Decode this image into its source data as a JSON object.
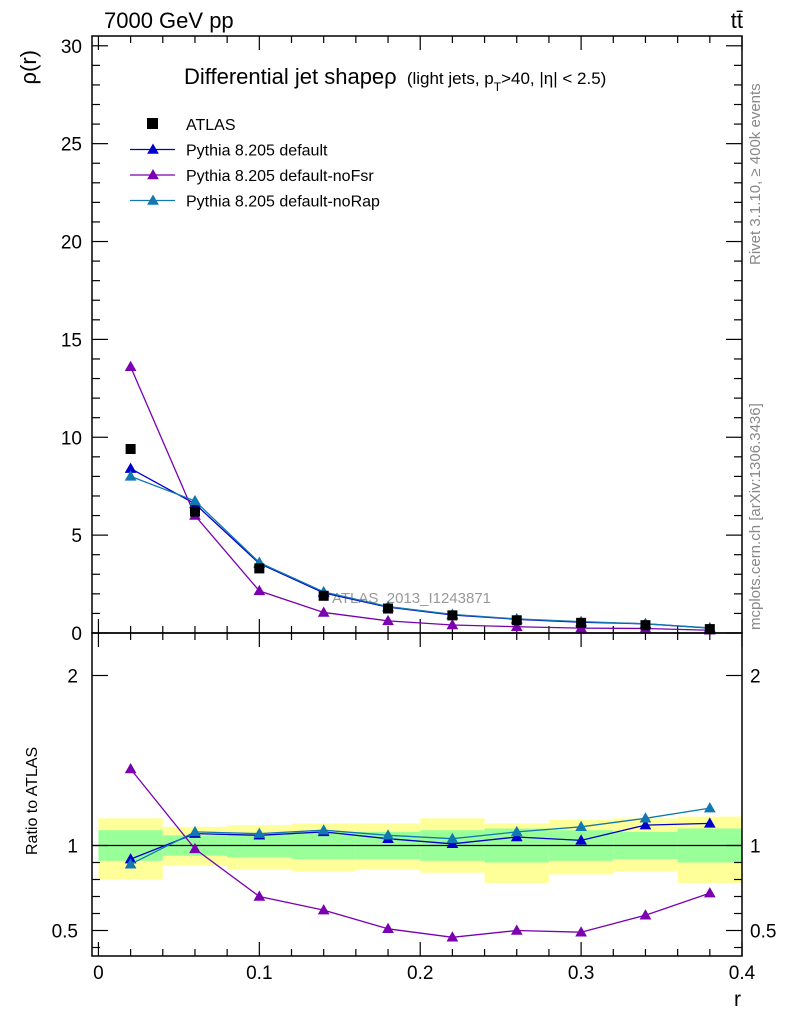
{
  "header": {
    "energy": "7000 GeV pp",
    "process": "tt̄"
  },
  "side_labels": {
    "rivet": "Rivet 3.1.10, ≥ 400k events",
    "mcplots": "mcplots.cern.ch [arXiv:1306.3436]"
  },
  "chart_data": [
    {
      "type": "line",
      "title": "Differential jet shapeρ (light jets, p_T>40, |η| < 2.5)",
      "title_main": "Differential jet shapeρ",
      "title_sub": "(light jets, p",
      "title_sub_T": "T",
      "title_sub_rest": ">40, |η| < 2.5)",
      "ylabel": "ρ(r)",
      "xlabel": "r",
      "xlim": [
        -0.004,
        0.4
      ],
      "ylim": [
        0,
        30.5
      ],
      "yticks": [
        0,
        5,
        10,
        15,
        20,
        25,
        30
      ],
      "ytick_labels": [
        "0",
        "5",
        "10",
        "15",
        "20",
        "25",
        "30"
      ],
      "watermark": "ATLAS_2013_I1243871",
      "legend_position": "top-left",
      "x": [
        0.02,
        0.06,
        0.1,
        0.14,
        0.18,
        0.22,
        0.26,
        0.3,
        0.34,
        0.38
      ],
      "data_series": {
        "name": "ATLAS",
        "values": [
          9.4,
          6.2,
          3.3,
          1.9,
          1.25,
          0.9,
          0.65,
          0.52,
          0.4,
          0.2
        ]
      },
      "series": [
        {
          "name": "Pythia 8.205 default",
          "color": "#0000cc",
          "values": [
            8.4,
            6.6,
            3.55,
            2.05,
            1.32,
            0.92,
            0.7,
            0.55,
            0.47,
            0.25
          ]
        },
        {
          "name": "Pythia 8.205 default-noFsr",
          "color": "#7a00b0",
          "values": [
            13.6,
            6.0,
            2.15,
            1.05,
            0.62,
            0.41,
            0.32,
            0.25,
            0.23,
            0.14
          ]
        },
        {
          "name": "Pythia 8.205 default-noRap",
          "color": "#1178b0",
          "values": [
            8.0,
            6.75,
            3.6,
            2.1,
            1.35,
            0.95,
            0.72,
            0.58,
            0.47,
            0.26
          ]
        }
      ]
    },
    {
      "type": "line",
      "ylabel": "Ratio to ATLAS",
      "xlabel": "r",
      "xlim": [
        -0.004,
        0.4
      ],
      "ylim": [
        0.35,
        2.25
      ],
      "yticks": [
        0.5,
        1,
        2
      ],
      "ytick_labels": [
        "0.5",
        "1",
        "2"
      ],
      "xticks": [
        0,
        0.1,
        0.2,
        0.3,
        0.4
      ],
      "xtick_labels": [
        "0",
        "0.1",
        "0.2",
        "0.3",
        "0.4"
      ],
      "x": [
        0.02,
        0.06,
        0.1,
        0.14,
        0.18,
        0.22,
        0.26,
        0.3,
        0.34,
        0.38
      ],
      "bins": [
        [
          0.0,
          0.04
        ],
        [
          0.04,
          0.08
        ],
        [
          0.08,
          0.12
        ],
        [
          0.12,
          0.16
        ],
        [
          0.16,
          0.2
        ],
        [
          0.2,
          0.24
        ],
        [
          0.24,
          0.28
        ],
        [
          0.28,
          0.32
        ],
        [
          0.32,
          0.36
        ],
        [
          0.36,
          0.4
        ]
      ],
      "band_stat": [
        [
          0.91,
          1.09
        ],
        [
          0.94,
          1.06
        ],
        [
          0.93,
          1.07
        ],
        [
          0.92,
          1.08
        ],
        [
          0.92,
          1.08
        ],
        [
          0.91,
          1.09
        ],
        [
          0.9,
          1.1
        ],
        [
          0.91,
          1.09
        ],
        [
          0.92,
          1.08
        ],
        [
          0.9,
          1.1
        ]
      ],
      "band_total": [
        [
          0.8,
          1.16
        ],
        [
          0.88,
          1.11
        ],
        [
          0.86,
          1.12
        ],
        [
          0.85,
          1.13
        ],
        [
          0.86,
          1.13
        ],
        [
          0.84,
          1.16
        ],
        [
          0.78,
          1.13
        ],
        [
          0.83,
          1.15
        ],
        [
          0.85,
          1.16
        ],
        [
          0.78,
          1.17
        ]
      ],
      "series": [
        {
          "name": "Pythia 8.205 default",
          "color": "#0000cc",
          "values": [
            0.92,
            1.07,
            1.06,
            1.08,
            1.04,
            1.01,
            1.05,
            1.03,
            1.12,
            1.13
          ]
        },
        {
          "name": "Pythia 8.205 default-noFsr",
          "color": "#7a00b0",
          "values": [
            1.45,
            0.98,
            0.7,
            0.62,
            0.51,
            0.46,
            0.5,
            0.49,
            0.59,
            0.72
          ]
        },
        {
          "name": "Pythia 8.205 default-noRap",
          "color": "#1178b0",
          "values": [
            0.89,
            1.08,
            1.07,
            1.09,
            1.06,
            1.04,
            1.08,
            1.11,
            1.16,
            1.22
          ]
        }
      ]
    }
  ]
}
